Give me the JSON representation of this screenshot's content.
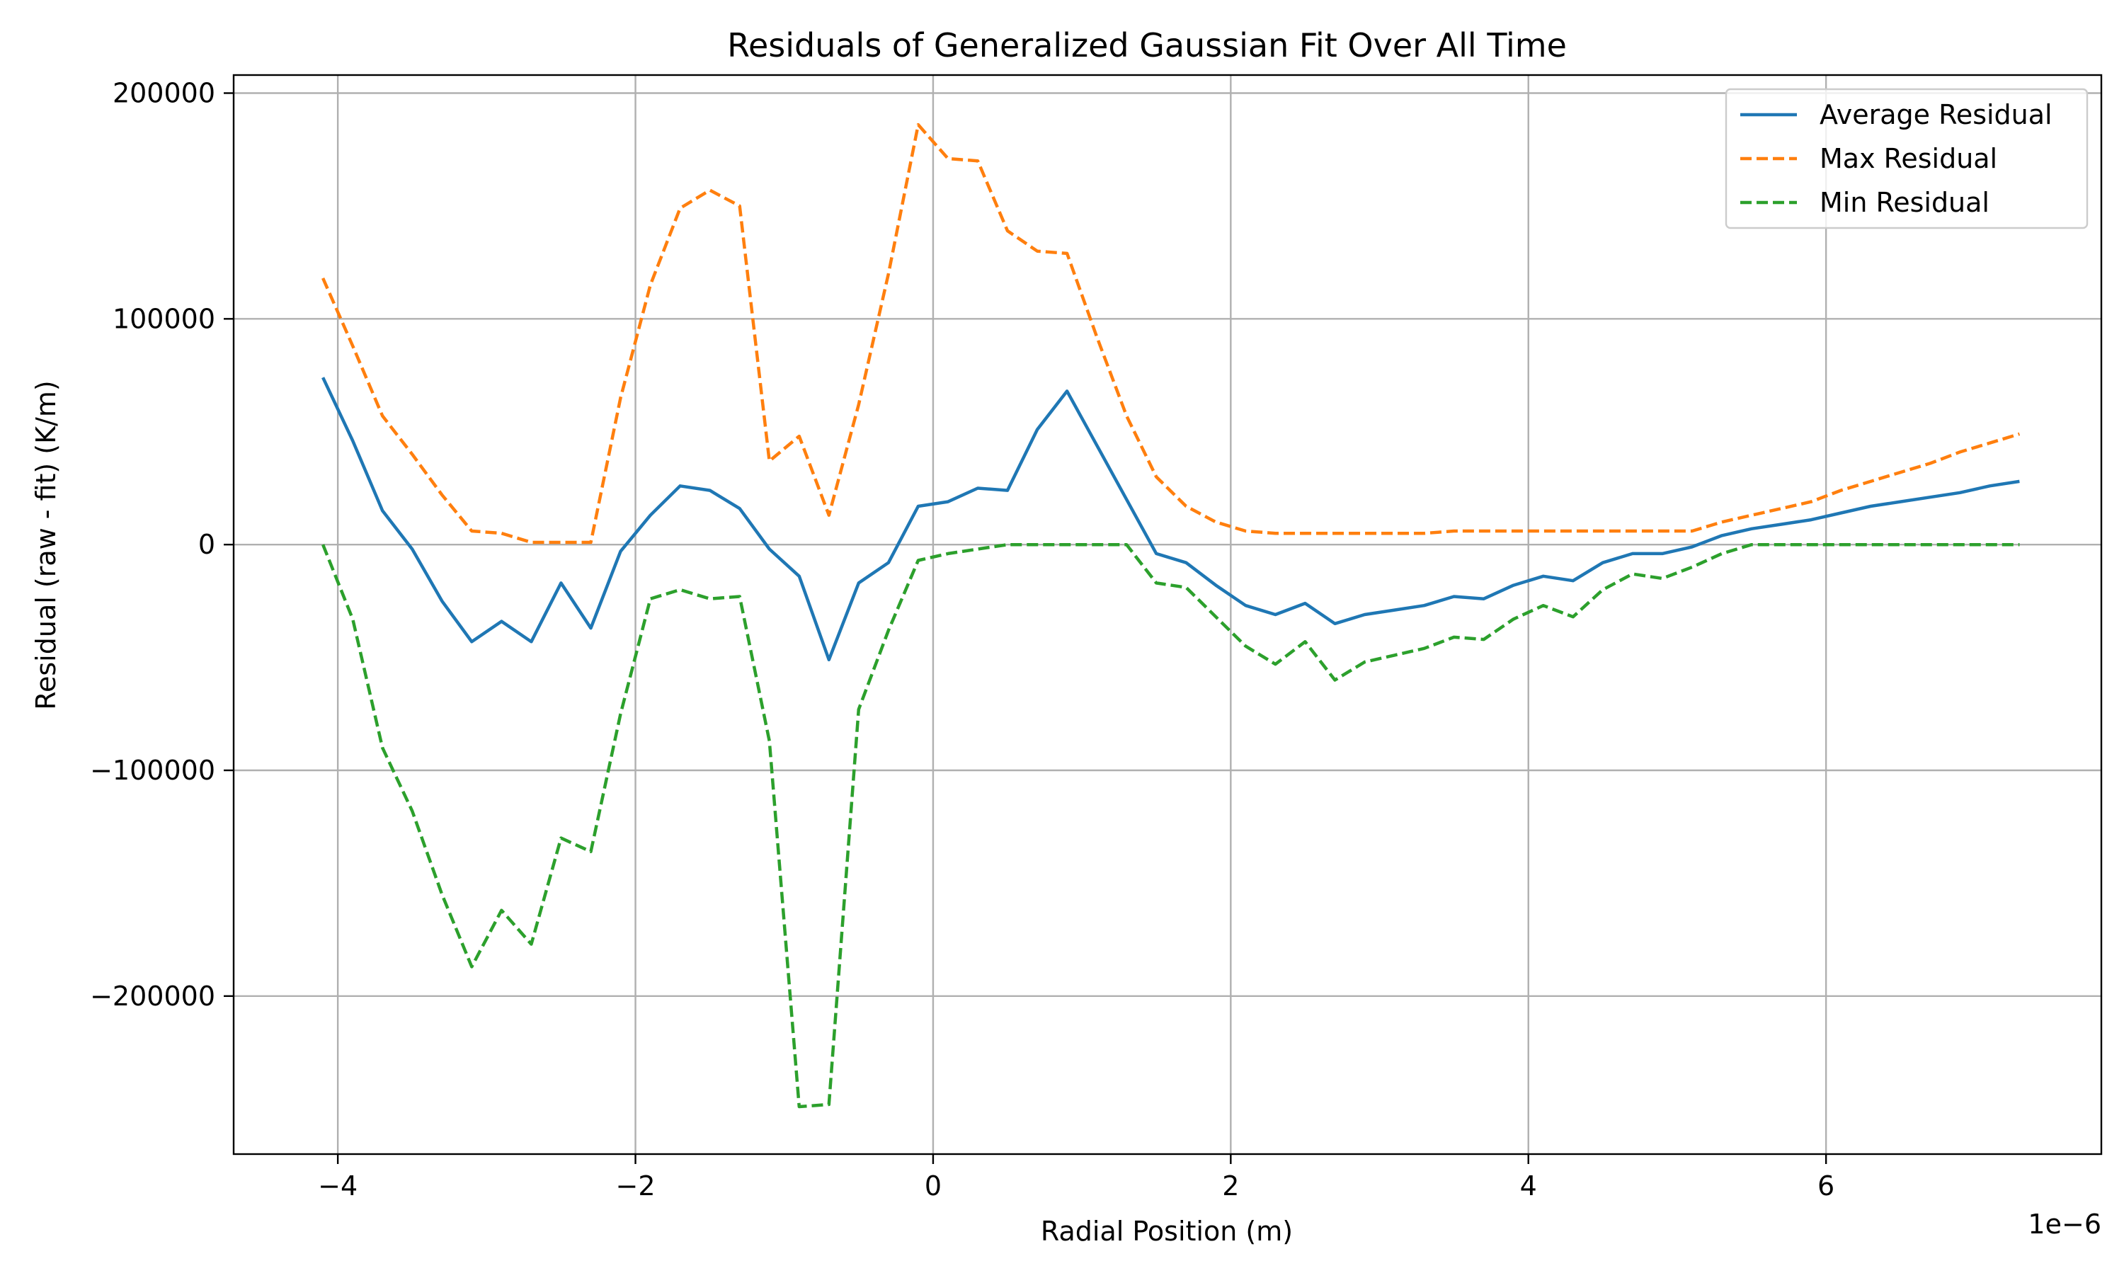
{
  "chart_data": {
    "type": "line",
    "title": "Residuals of Generalized Gaussian Fit Over All Time",
    "xlabel": "Radial Position (m)",
    "ylabel": "Residual (raw - fit) (K/m)",
    "x_offset_label": "1e−6",
    "xlim": [
      -4.7,
      7.85
    ],
    "ylim": [
      -270000,
      208000
    ],
    "x_ticks": [
      -4,
      -2,
      0,
      2,
      4,
      6
    ],
    "x_tick_labels": [
      "−4",
      "−2",
      "0",
      "2",
      "4",
      "6"
    ],
    "y_ticks": [
      -200000,
      -100000,
      0,
      100000,
      200000
    ],
    "y_tick_labels": [
      "−200000",
      "−100000",
      "0",
      "100000",
      "200000"
    ],
    "grid": true,
    "legend_position": "top-right",
    "x": [
      -4.1,
      -3.9,
      -3.7,
      -3.5,
      -3.3,
      -3.1,
      -2.9,
      -2.7,
      -2.5,
      -2.3,
      -2.1,
      -1.9,
      -1.7,
      -1.5,
      -1.3,
      -1.1,
      -0.9,
      -0.7,
      -0.5,
      -0.3,
      -0.1,
      0.1,
      0.3,
      0.5,
      0.7,
      0.9,
      1.1,
      1.3,
      1.5,
      1.7,
      1.9,
      2.1,
      2.3,
      2.5,
      2.7,
      2.9,
      3.1,
      3.3,
      3.5,
      3.7,
      3.9,
      4.1,
      4.3,
      4.5,
      4.7,
      4.9,
      5.1,
      5.3,
      5.5,
      5.7,
      5.9,
      6.1,
      6.3,
      6.5,
      6.7,
      6.9,
      7.1,
      7.3
    ],
    "series": [
      {
        "name": "Average Residual",
        "color": "#1f77b4",
        "dash": "solid",
        "values": [
          74000,
          46000,
          15000,
          -2000,
          -25000,
          -43000,
          -34000,
          -43000,
          -17000,
          -37000,
          -3000,
          13000,
          26000,
          24000,
          16000,
          -2000,
          -14000,
          -51000,
          -17000,
          -8000,
          17000,
          19000,
          25000,
          24000,
          51000,
          68000,
          44000,
          20000,
          -4000,
          -8000,
          -18000,
          -27000,
          -31000,
          -26000,
          -35000,
          -31000,
          -29000,
          -27000,
          -23000,
          -24000,
          -18000,
          -14000,
          -16000,
          -8000,
          -4000,
          -4000,
          -1000,
          4000,
          7000,
          9000,
          11000,
          14000,
          17000,
          19000,
          21000,
          23000,
          26000,
          28000
        ]
      },
      {
        "name": "Max Residual",
        "color": "#ff7f0e",
        "dash": "dashed",
        "values": [
          118000,
          88000,
          57000,
          40000,
          22000,
          6000,
          5000,
          1000,
          1000,
          1000,
          65000,
          115000,
          149000,
          157000,
          150000,
          37000,
          48000,
          13000,
          62000,
          120000,
          186000,
          171000,
          170000,
          139000,
          130000,
          129000,
          92000,
          57000,
          30000,
          17000,
          10000,
          6000,
          5000,
          5000,
          5000,
          5000,
          5000,
          5000,
          6000,
          6000,
          6000,
          6000,
          6000,
          6000,
          6000,
          6000,
          6000,
          10000,
          13000,
          16000,
          19000,
          24000,
          28000,
          32000,
          36000,
          41000,
          45000,
          49000
        ]
      },
      {
        "name": "Min Residual",
        "color": "#2ca02c",
        "dash": "dashed",
        "values": [
          0,
          -33000,
          -90000,
          -118000,
          -155000,
          -187000,
          -162000,
          -177000,
          -130000,
          -136000,
          -75000,
          -24000,
          -20000,
          -24000,
          -23000,
          -87000,
          -249000,
          -248000,
          -73000,
          -38000,
          -7000,
          -4000,
          -2000,
          0,
          0,
          0,
          0,
          0,
          -17000,
          -19000,
          -32000,
          -45000,
          -53000,
          -43000,
          -60000,
          -52000,
          -49000,
          -46000,
          -41000,
          -42000,
          -33000,
          -27000,
          -32000,
          -20000,
          -13000,
          -15000,
          -10000,
          -4000,
          0,
          0,
          0,
          0,
          0,
          0,
          0,
          0,
          0,
          0
        ]
      }
    ]
  }
}
